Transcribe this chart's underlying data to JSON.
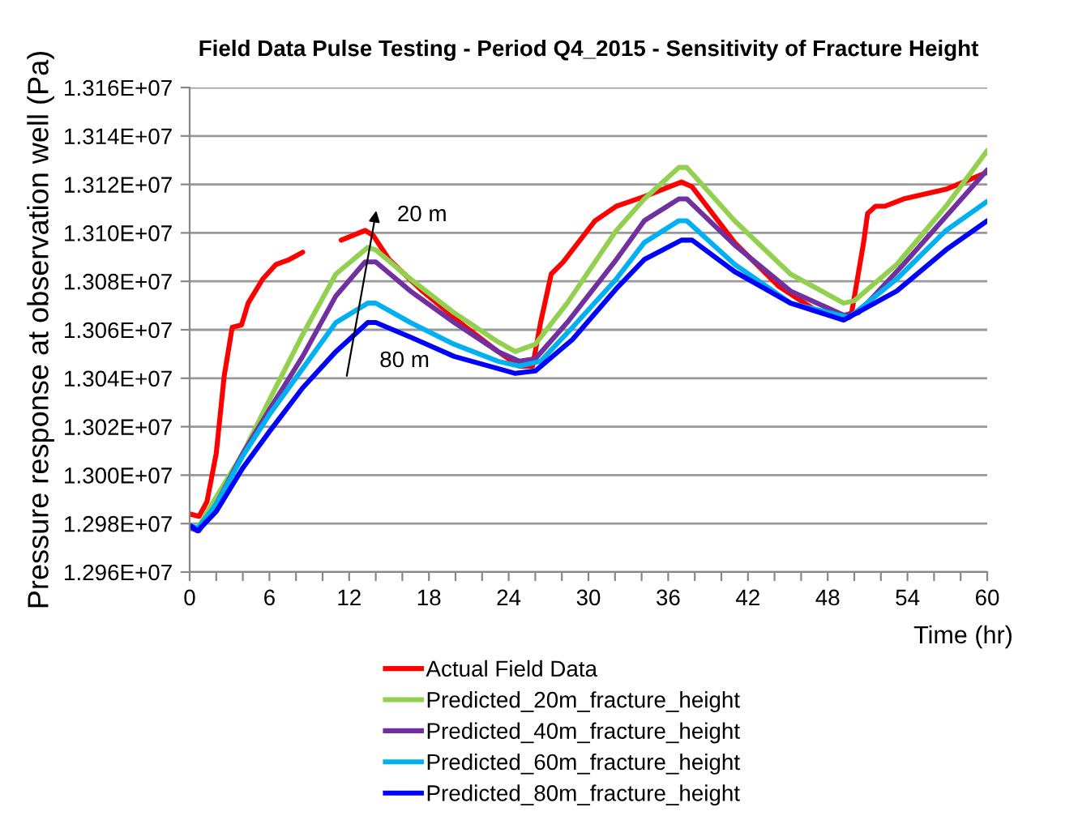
{
  "chart_data": {
    "type": "line",
    "title": "Field Data Pulse Testing - Period Q4_2015 - Sensitivity of Fracture Height",
    "xlabel": "Time (hr)",
    "ylabel": "Pressure response at observation well (Pa)",
    "xlim": [
      0,
      60
    ],
    "ylim": [
      12960000,
      13160000
    ],
    "xticks": [
      0,
      {
        "value": 2,
        "label": null
      },
      {
        "value": 4,
        "label": null
      },
      6,
      {
        "value": 8,
        "label": null
      },
      {
        "value": 10,
        "label": null
      },
      12,
      {
        "value": 14,
        "label": null
      },
      {
        "value": 16,
        "label": null
      },
      18,
      {
        "value": 20,
        "label": null
      },
      {
        "value": 22,
        "label": null
      },
      24,
      {
        "value": 26,
        "label": null
      },
      {
        "value": 28,
        "label": null
      },
      30,
      {
        "value": 32,
        "label": null
      },
      {
        "value": 34,
        "label": null
      },
      36,
      {
        "value": 38,
        "label": null
      },
      {
        "value": 40,
        "label": null
      },
      42,
      {
        "value": 44,
        "label": null
      },
      {
        "value": 46,
        "label": null
      },
      48,
      {
        "value": 50,
        "label": null
      },
      {
        "value": 52,
        "label": null
      },
      54,
      {
        "value": 56,
        "label": null
      },
      {
        "value": 58,
        "label": null
      },
      60
    ],
    "yticks": [
      {
        "value": 12960000,
        "label": "1.296E+07"
      },
      {
        "value": 12980000,
        "label": "1.298E+07"
      },
      {
        "value": 13000000,
        "label": "1.300E+07"
      },
      {
        "value": 13020000,
        "label": "1.302E+07"
      },
      {
        "value": 13040000,
        "label": "1.304E+07"
      },
      {
        "value": 13060000,
        "label": "1.306E+07"
      },
      {
        "value": 13080000,
        "label": "1.308E+07"
      },
      {
        "value": 13100000,
        "label": "1.310E+07"
      },
      {
        "value": 13120000,
        "label": "1.312E+07"
      },
      {
        "value": 13140000,
        "label": "1.314E+07"
      },
      {
        "value": 13160000,
        "label": "1.316E+07"
      }
    ],
    "grid": "y",
    "legend": "bottom",
    "marker": "none",
    "line_style": "solid",
    "annotations": [
      "20 m",
      "80 m"
    ],
    "series": [
      {
        "name": "Actual Field Data",
        "color": "#ff0000",
        "x": [
          0,
          0.7,
          1.3,
          2.0,
          2.6,
          3.2,
          3.9,
          4.4,
          5.5,
          6.5,
          7.5,
          8.5,
          10,
          11.4,
          13.2,
          13.8,
          15,
          17.5,
          20.8,
          23.2,
          24.8,
          25.8,
          26.4,
          27.2,
          28.1,
          30.5,
          32.1,
          34.2,
          37,
          37.8,
          41,
          44.3,
          47.1,
          49,
          49.8,
          50.7,
          51,
          51.6,
          52.3,
          53.7,
          56.9,
          60
        ],
        "values": [
          12984000,
          12983000,
          12989000,
          13009000,
          13041000,
          13061000,
          13062000,
          13071000,
          13081000,
          13087000,
          13089000,
          13092000,
          null,
          13097000,
          13101000,
          13099000,
          13089000,
          13076000,
          13061000,
          13051000,
          13045000,
          13045000,
          13063000,
          13083000,
          13088000,
          13105000,
          13111000,
          13115000,
          13121000,
          13119000,
          13096000,
          13078000,
          13068000,
          13065000,
          13067000,
          13096000,
          13108000,
          13111000,
          13111000,
          13114000,
          13118000,
          13125000
        ]
      },
      {
        "name": "Predicted_20m_fracture_height",
        "color": "#92d050",
        "x": [
          0.1,
          0.6,
          2,
          4,
          6,
          8.5,
          11,
          13.4,
          14,
          16.6,
          19.9,
          23.2,
          24.5,
          26,
          28.4,
          32.1,
          34.2,
          36.8,
          37.4,
          41,
          45.2,
          49.2,
          50,
          53.2,
          56.9,
          60
        ],
        "values": [
          12979000,
          12978000,
          12991000,
          13009000,
          13031000,
          13058000,
          13083000,
          13094000,
          13093000,
          13081000,
          13067000,
          13055000,
          13051000,
          13054000,
          13071000,
          13101000,
          13114000,
          13127000,
          13127000,
          13105000,
          13083000,
          13071000,
          13072000,
          13087000,
          13111000,
          13134000
        ]
      },
      {
        "name": "Predicted_40m_fracture_height",
        "color": "#7030a0",
        "x": [
          0.1,
          0.7,
          2,
          4,
          6,
          8.5,
          11,
          13.2,
          14,
          16.6,
          19.9,
          23.2,
          24.8,
          26,
          28.4,
          32.1,
          34.2,
          36.8,
          37.4,
          41,
          45.2,
          49.2,
          50.3,
          53.7,
          60
        ],
        "values": [
          12978000,
          12977000,
          12988000,
          13009000,
          13027000,
          13049000,
          13074000,
          13088000,
          13088000,
          13076000,
          13063000,
          13051000,
          13047000,
          13048000,
          13063000,
          13089000,
          13105000,
          13114000,
          13114000,
          13095000,
          13076000,
          13066000,
          13067000,
          13087000,
          13126000
        ]
      },
      {
        "name": "Predicted_60m_fracture_height",
        "color": "#00b0f0",
        "x": [
          0.1,
          0.6,
          2,
          4,
          6,
          8.5,
          11,
          13.4,
          14,
          16.6,
          19.9,
          23.2,
          24.8,
          26.4,
          28.8,
          32.1,
          34.2,
          36.8,
          37.4,
          41,
          45.2,
          49.6,
          53.2,
          56.9,
          60
        ],
        "values": [
          12979000,
          12978000,
          12988000,
          13008000,
          13025000,
          13044000,
          13063000,
          13071000,
          13071000,
          13063000,
          13054000,
          13047000,
          13045000,
          13047000,
          13061000,
          13081000,
          13096000,
          13105000,
          13105000,
          13087000,
          13071000,
          13065000,
          13081000,
          13101000,
          13113000
        ]
      },
      {
        "name": "Predicted_80m_fracture_height",
        "color": "#0000ff",
        "x": [
          0.1,
          0.6,
          2,
          4,
          6,
          8.5,
          11,
          13.4,
          14,
          16.6,
          19.9,
          23.2,
          24.5,
          26,
          28.8,
          32.1,
          34.2,
          37,
          37.8,
          41,
          45.2,
          49.2,
          53.2,
          56.9,
          60
        ],
        "values": [
          12979000,
          12977000,
          12985000,
          13003000,
          13018000,
          13036000,
          13051000,
          13063000,
          13063000,
          13057000,
          13049000,
          13044000,
          13042000,
          13043000,
          13056000,
          13077000,
          13089000,
          13097000,
          13097000,
          13084000,
          13071000,
          13064000,
          13076000,
          13093000,
          13105000
        ]
      }
    ]
  }
}
